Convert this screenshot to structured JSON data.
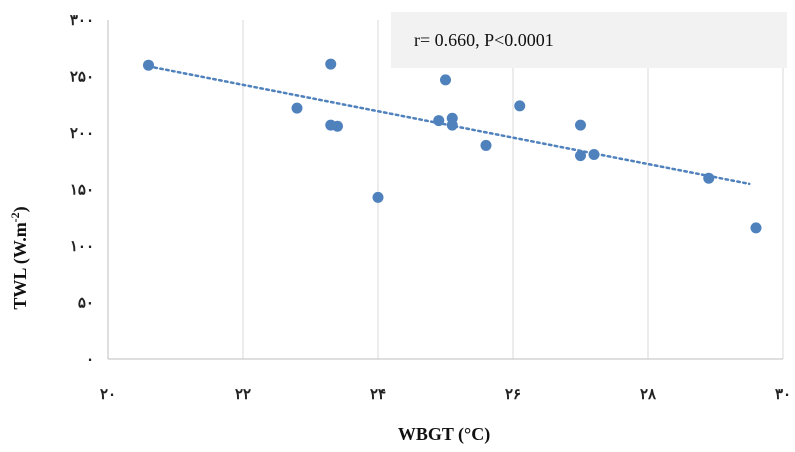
{
  "chart_data": {
    "type": "scatter",
    "xlabel": "WBGT (°C)",
    "ylabel_main": "TWL (W.m",
    "ylabel_sup": "-2",
    "ylabel_close": ")",
    "xlim": [
      20,
      30
    ],
    "ylim": [
      0,
      300
    ],
    "x_ticks": [
      20,
      22,
      24,
      26,
      28,
      30
    ],
    "x_tick_labels": [
      "۲۰",
      "۲۲",
      "۲۴",
      "۲۶",
      "۲۸",
      "۳۰"
    ],
    "y_ticks": [
      0,
      50,
      100,
      150,
      200,
      250,
      300
    ],
    "y_tick_labels": [
      "۰",
      "۵۰",
      "۱۰۰",
      "۱۵۰",
      "۲۰۰",
      "۲۵۰",
      "۳۰۰"
    ],
    "grid": "vertical",
    "point_color": "#4f81bd",
    "trendline_color": "#4f81bd",
    "annotation": "r= 0.660, P<0.0001",
    "annotation_bg": "#f2f2f2",
    "points": [
      {
        "x": 20.6,
        "y": 260
      },
      {
        "x": 22.8,
        "y": 222
      },
      {
        "x": 23.3,
        "y": 261
      },
      {
        "x": 23.3,
        "y": 207
      },
      {
        "x": 23.4,
        "y": 206
      },
      {
        "x": 24.0,
        "y": 143
      },
      {
        "x": 24.9,
        "y": 211
      },
      {
        "x": 25.0,
        "y": 247
      },
      {
        "x": 25.1,
        "y": 213
      },
      {
        "x": 25.1,
        "y": 207
      },
      {
        "x": 25.6,
        "y": 189
      },
      {
        "x": 26.1,
        "y": 224
      },
      {
        "x": 27.0,
        "y": 207
      },
      {
        "x": 27.0,
        "y": 180
      },
      {
        "x": 27.2,
        "y": 181
      },
      {
        "x": 28.9,
        "y": 160
      },
      {
        "x": 29.6,
        "y": 116
      }
    ],
    "trendline": [
      {
        "x": 20.6,
        "y": 259
      },
      {
        "x": 29.5,
        "y": 155
      }
    ]
  }
}
